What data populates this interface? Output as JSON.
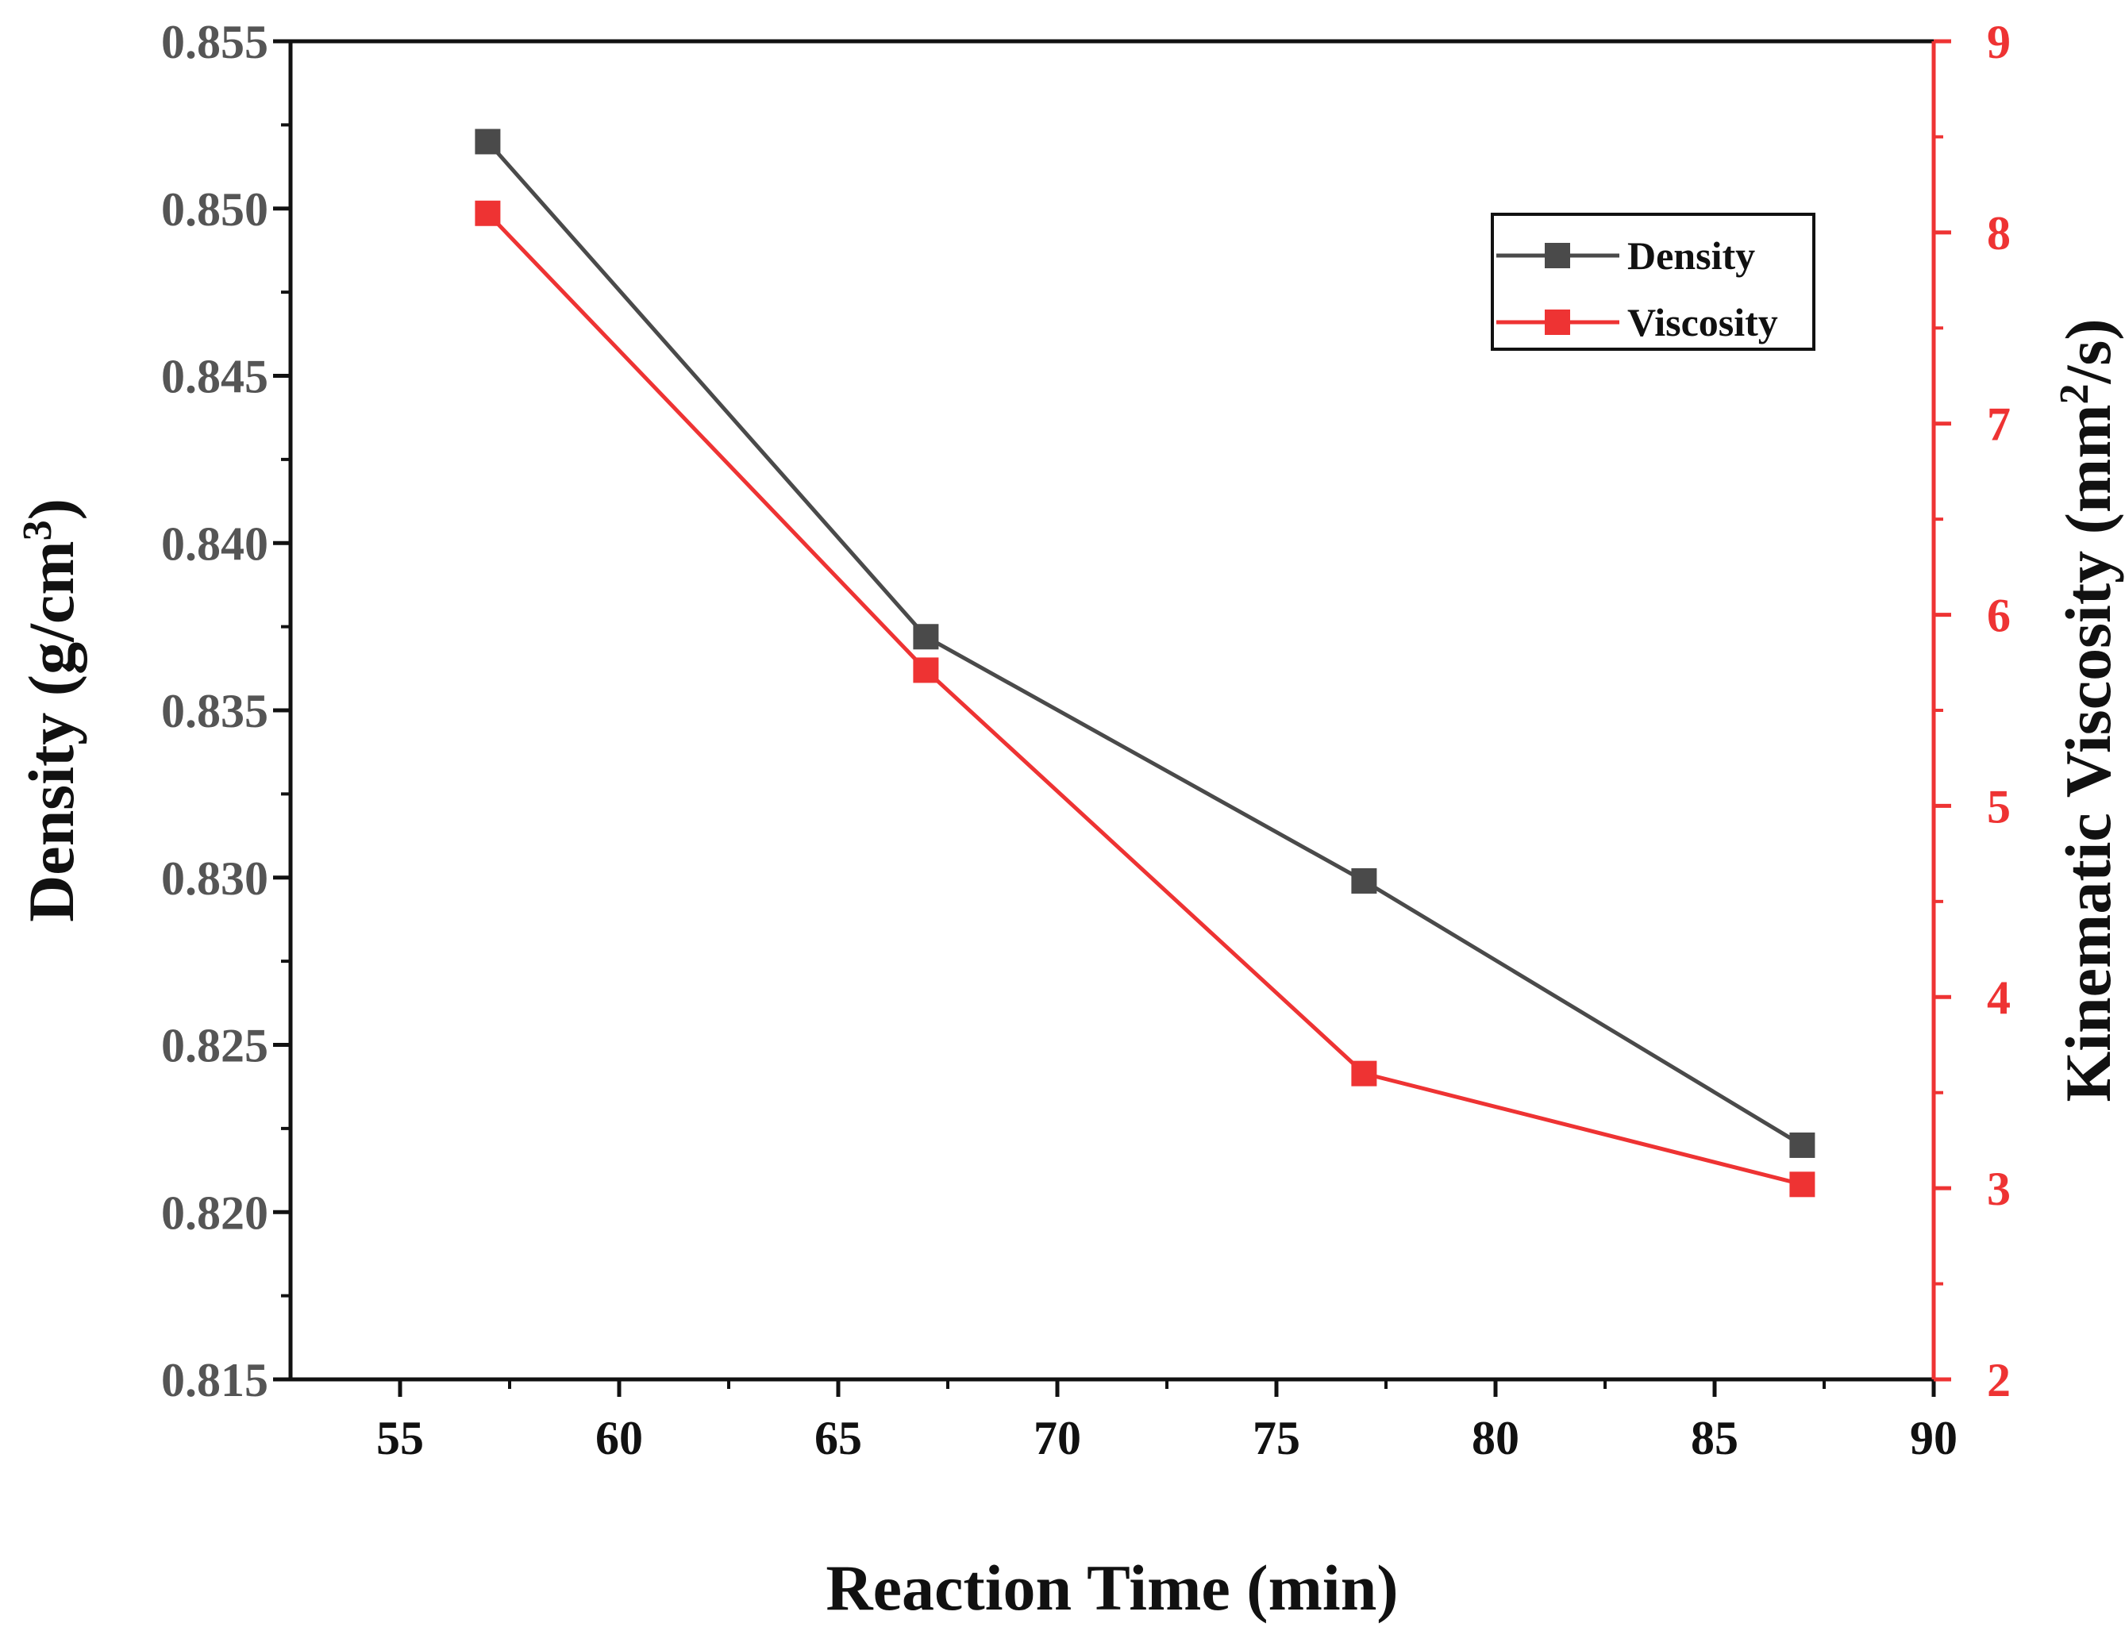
{
  "chart_data": {
    "type": "line",
    "x": [
      57,
      67,
      77,
      87
    ],
    "xlabel": "Reaction Time (min)",
    "xlim": [
      52.5,
      90
    ],
    "xticks": [
      55,
      60,
      65,
      70,
      75,
      80,
      85,
      90
    ],
    "xtick_labels": [
      "55",
      "60",
      "65",
      "70",
      "75",
      "80",
      "85",
      "90"
    ],
    "y_left": {
      "label_main": "Density (g/cm",
      "label_sup": "3",
      "label_end": ")",
      "lim": [
        0.815,
        0.855
      ],
      "ticks": [
        0.815,
        0.82,
        0.825,
        0.83,
        0.835,
        0.84,
        0.845,
        0.85,
        0.855
      ],
      "tick_labels": [
        "0.815",
        "0.820",
        "0.825",
        "0.830",
        "0.835",
        "0.840",
        "0.845",
        "0.850",
        "0.855"
      ],
      "color": "#555555"
    },
    "y_right": {
      "label_main": "Kinematic Viscosity (mm",
      "label_sup": "2",
      "label_end": "/s)",
      "lim": [
        2,
        9
      ],
      "ticks": [
        2,
        3,
        4,
        5,
        6,
        7,
        8,
        9
      ],
      "tick_labels": [
        "2",
        "3",
        "4",
        "5",
        "6",
        "7",
        "8",
        "9"
      ],
      "color": "#ee3333"
    },
    "series": [
      {
        "name": "Density",
        "axis": "left",
        "color": "#4a4a4a",
        "values": [
          0.852,
          0.8372,
          0.8299,
          0.822
        ]
      },
      {
        "name": "Viscosity",
        "axis": "right",
        "color": "#ee3333",
        "values": [
          8.1,
          5.71,
          3.6,
          3.02
        ]
      }
    ],
    "legend": {
      "position": "top-right"
    },
    "grid": false
  }
}
